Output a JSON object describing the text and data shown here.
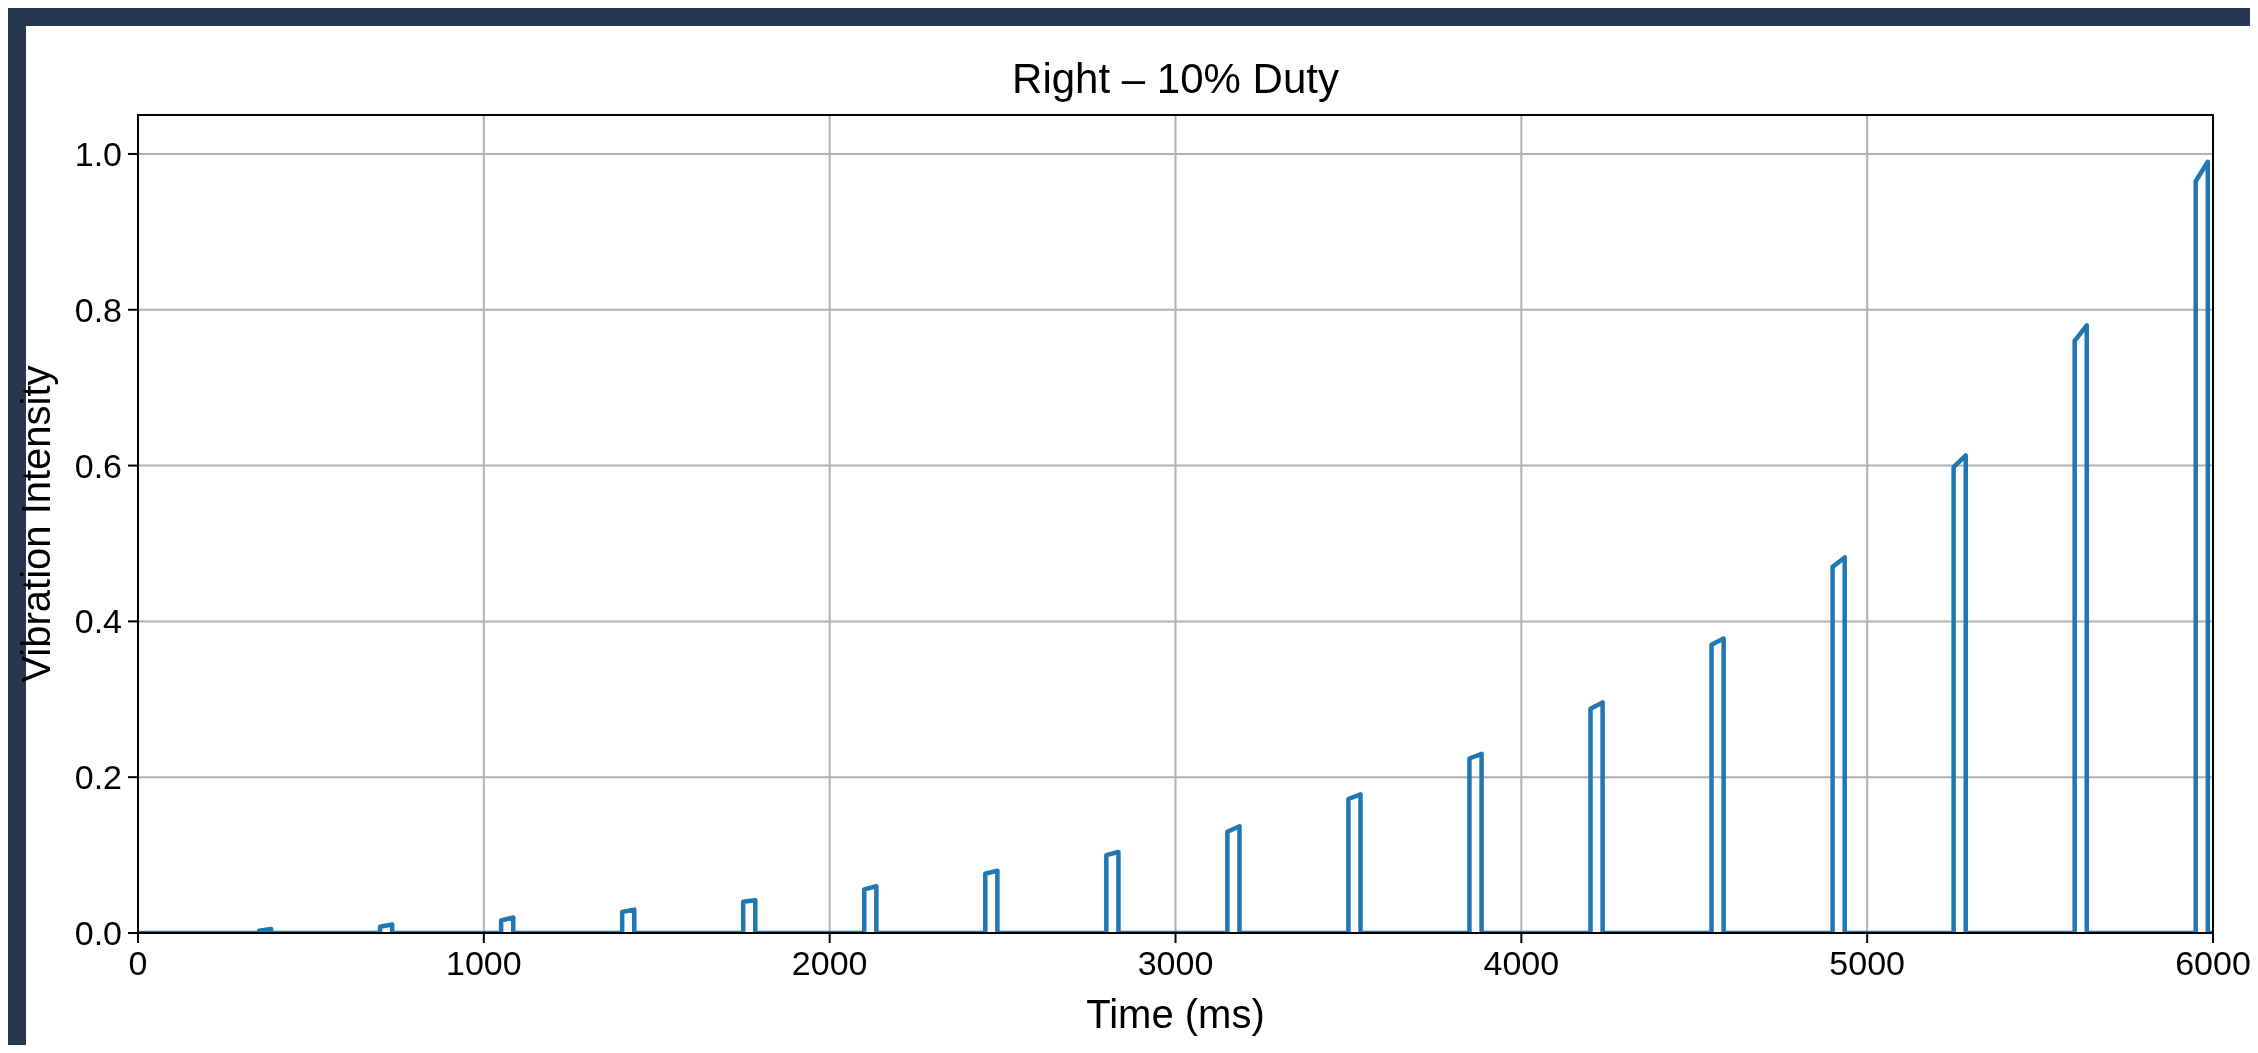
{
  "chart_data": {
    "type": "line",
    "title": "Right – 10% Duty",
    "xlabel": "Time (ms)",
    "ylabel": "Vibration Intensity",
    "x": [
      0,
      350,
      350,
      385,
      385,
      700,
      700,
      735,
      735,
      1050,
      1050,
      1085,
      1085,
      1400,
      1400,
      1435,
      1435,
      1750,
      1750,
      1785,
      1785,
      2100,
      2100,
      2135,
      2135,
      2450,
      2450,
      2485,
      2485,
      2800,
      2800,
      2835,
      2835,
      3150,
      3150,
      3185,
      3185,
      3500,
      3500,
      3535,
      3535,
      3850,
      3850,
      3885,
      3885,
      4200,
      4200,
      4235,
      4235,
      4550,
      4550,
      4585,
      4585,
      4900,
      4900,
      4935,
      4935,
      5250,
      5250,
      5285,
      5285,
      5600,
      5600,
      5635,
      5635,
      5950,
      5950,
      5985,
      5985,
      6000
    ],
    "series": [
      {
        "color": "#1f77b4",
        "values": [
          0,
          0,
          0.003,
          0.005,
          0,
          0,
          0.008,
          0.011,
          0,
          0,
          0.016,
          0.02,
          0,
          0,
          0.027,
          0.03,
          0,
          0,
          0.04,
          0.042,
          0,
          0,
          0.056,
          0.06,
          0,
          0,
          0.076,
          0.08,
          0,
          0,
          0.1,
          0.104,
          0,
          0,
          0.13,
          0.137,
          0,
          0,
          0.172,
          0.178,
          0,
          0,
          0.224,
          0.23,
          0,
          0,
          0.288,
          0.296,
          0,
          0,
          0.37,
          0.378,
          0,
          0,
          0.47,
          0.482,
          0,
          0,
          0.598,
          0.613,
          0,
          0,
          0.76,
          0.78,
          0,
          0,
          0.965,
          0.99,
          0,
          0
        ]
      }
    ],
    "xlim": [
      0,
      6000
    ],
    "xticks": [
      0,
      1000,
      2000,
      3000,
      4000,
      5000,
      6000
    ],
    "ylim": [
      0,
      1.05
    ],
    "yticks": [
      {
        "value": 0,
        "label": "0.0"
      },
      {
        "value": 0.2,
        "label": "0.2"
      },
      {
        "value": 0.4,
        "label": "0.4"
      },
      {
        "value": 0.6,
        "label": "0.6"
      },
      {
        "value": 0.8,
        "label": "0.8"
      },
      {
        "value": 1,
        "label": "1.0"
      }
    ],
    "grid": true,
    "line_style": "solid",
    "marker": "none"
  }
}
